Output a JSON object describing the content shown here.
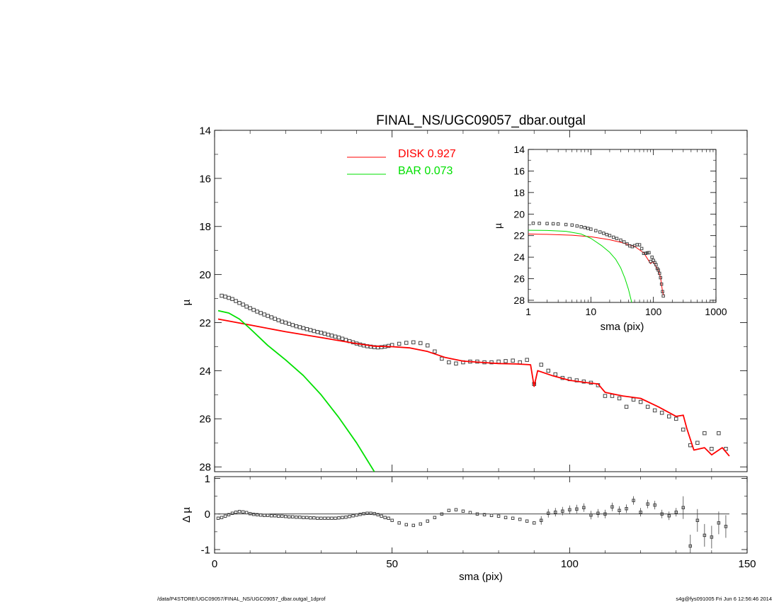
{
  "colors": {
    "disk": "#ff0000",
    "bar": "#00e000",
    "data": "#555555",
    "axis": "#000000"
  },
  "chart_data": [
    {
      "id": "main",
      "type": "line",
      "title": "FINAL_NS/UGC09057_dbar.outgal",
      "ylabel": "µ",
      "xlim": [
        0,
        150
      ],
      "ylim": [
        28.2,
        14
      ],
      "x_ticks": [
        0,
        50,
        100,
        150
      ],
      "y_ticks": [
        14,
        16,
        18,
        20,
        22,
        24,
        26,
        28
      ],
      "legend": {
        "placement": "top-center",
        "entries": [
          {
            "label": "DISK  0.927",
            "color": "#ff0000"
          },
          {
            "label": "BAR  0.073",
            "color": "#00e000"
          }
        ]
      },
      "series": [
        {
          "name": "DISK",
          "color": "#ff0000",
          "x": [
            1,
            10,
            20,
            30,
            40,
            45,
            50,
            55,
            60,
            65,
            70,
            75,
            80,
            85,
            89,
            90,
            91,
            95,
            100,
            105,
            108,
            110,
            115,
            120,
            125,
            130,
            132,
            133,
            135,
            138,
            140,
            143,
            145
          ],
          "y": [
            21.85,
            22.1,
            22.38,
            22.62,
            22.87,
            22.98,
            23.0,
            23.05,
            23.2,
            23.45,
            23.6,
            23.65,
            23.7,
            23.72,
            23.75,
            24.65,
            24.0,
            24.2,
            24.4,
            24.5,
            24.55,
            24.9,
            25.05,
            25.15,
            25.5,
            25.9,
            25.85,
            26.4,
            27.3,
            27.2,
            27.5,
            27.2,
            27.55
          ]
        },
        {
          "name": "BAR",
          "color": "#00e000",
          "x": [
            1,
            4,
            7,
            10,
            15,
            20,
            25,
            30,
            35,
            40,
            45
          ],
          "y": [
            21.5,
            21.6,
            21.85,
            22.25,
            22.95,
            23.55,
            24.2,
            25.0,
            25.95,
            27.0,
            28.2
          ]
        }
      ],
      "points": {
        "x": [
          2,
          3,
          4,
          5,
          6,
          7,
          8,
          9,
          10,
          11,
          12,
          13,
          14,
          15,
          16,
          17,
          18,
          19,
          20,
          21,
          22,
          23,
          24,
          25,
          26,
          27,
          28,
          29,
          30,
          31,
          32,
          33,
          34,
          35,
          36,
          37,
          38,
          39,
          40,
          41,
          42,
          43,
          44,
          45,
          46,
          47,
          48,
          49,
          50,
          52,
          54,
          56,
          58,
          60,
          62,
          64,
          66,
          68,
          70,
          72,
          74,
          76,
          78,
          80,
          82,
          84,
          86,
          88,
          90,
          92,
          94,
          96,
          98,
          100,
          102,
          104,
          106,
          108,
          110,
          112,
          114,
          116,
          118,
          120,
          122,
          124,
          126,
          128,
          130,
          132,
          134,
          136,
          138,
          140,
          142,
          144
        ],
        "y": [
          20.88,
          20.92,
          20.97,
          21.02,
          21.1,
          21.18,
          21.25,
          21.33,
          21.4,
          21.47,
          21.54,
          21.6,
          21.66,
          21.72,
          21.78,
          21.84,
          21.9,
          21.96,
          22.0,
          22.05,
          22.1,
          22.15,
          22.19,
          22.23,
          22.27,
          22.31,
          22.35,
          22.39,
          22.42,
          22.46,
          22.5,
          22.54,
          22.58,
          22.62,
          22.67,
          22.72,
          22.77,
          22.82,
          22.87,
          22.91,
          22.95,
          22.98,
          23.0,
          23.02,
          23.03,
          23.02,
          23.0,
          22.97,
          22.93,
          22.88,
          22.84,
          22.82,
          22.85,
          22.95,
          23.2,
          23.5,
          23.65,
          23.7,
          23.65,
          23.62,
          23.62,
          23.65,
          23.65,
          23.62,
          23.6,
          23.58,
          23.65,
          23.55,
          24.55,
          23.75,
          24.0,
          24.15,
          24.3,
          24.35,
          24.4,
          24.45,
          24.5,
          24.6,
          25.05,
          25.05,
          25.15,
          25.5,
          25.2,
          25.3,
          25.5,
          25.65,
          25.75,
          25.9,
          26.0,
          26.45,
          27.1,
          27.0,
          26.6,
          27.25,
          26.6,
          27.25
        ]
      }
    },
    {
      "id": "inset",
      "type": "line",
      "xlabel": "sma (pix)",
      "ylabel": "µ",
      "xscale": "log",
      "xlim": [
        1,
        1000
      ],
      "ylim": [
        28.2,
        14
      ],
      "x_ticks": [
        1,
        10,
        100,
        1000
      ],
      "x_tick_labels": [
        "1",
        "10",
        "100",
        "1000"
      ],
      "y_ticks": [
        14,
        16,
        18,
        20,
        22,
        24,
        26,
        28
      ],
      "series": [
        {
          "name": "DISK",
          "color": "#ff0000",
          "x": [
            1,
            2,
            5,
            10,
            20,
            30,
            50,
            70,
            90,
            100,
            110,
            120,
            130,
            140,
            145
          ],
          "y": [
            21.85,
            21.88,
            21.96,
            22.1,
            22.38,
            22.62,
            23.0,
            23.6,
            24.6,
            24.4,
            24.9,
            25.2,
            25.9,
            27.2,
            27.55
          ]
        },
        {
          "name": "BAR",
          "color": "#00e000",
          "x": [
            1,
            2,
            4,
            7,
            10,
            15,
            20,
            25,
            30,
            35,
            40,
            45
          ],
          "y": [
            21.5,
            21.52,
            21.6,
            21.85,
            22.25,
            22.95,
            23.55,
            24.2,
            25.0,
            25.95,
            27.0,
            28.2
          ]
        }
      ],
      "points": {
        "x": [
          1.2,
          1.5,
          2,
          2.5,
          3,
          4,
          5,
          6,
          7,
          8,
          9,
          10,
          12,
          14,
          16,
          18,
          20,
          23,
          26,
          30,
          34,
          38,
          42,
          46,
          50,
          55,
          60,
          65,
          70,
          75,
          80,
          85,
          90,
          95,
          100,
          105,
          110,
          115,
          120,
          125,
          130,
          135,
          140,
          144
        ],
        "y": [
          20.85,
          20.86,
          20.88,
          20.9,
          20.92,
          20.97,
          21.02,
          21.1,
          21.18,
          21.25,
          21.33,
          21.4,
          21.54,
          21.66,
          21.78,
          21.9,
          22.0,
          22.15,
          22.27,
          22.42,
          22.58,
          22.77,
          22.95,
          23.02,
          22.93,
          22.84,
          22.85,
          23.2,
          23.65,
          23.65,
          23.6,
          23.58,
          24.4,
          24.0,
          24.3,
          24.5,
          24.7,
          25.05,
          25.2,
          25.5,
          25.9,
          26.5,
          27.2,
          27.6
        ]
      }
    },
    {
      "id": "residual",
      "type": "scatter",
      "xlabel": "sma (pix)",
      "ylabel": "Δ µ",
      "xlim": [
        0,
        150
      ],
      "ylim": [
        -1.1,
        1.05
      ],
      "x_ticks": [
        0,
        50,
        100,
        150
      ],
      "x_tick_labels": [
        "0",
        "50",
        "100",
        "150"
      ],
      "y_ticks": [
        1,
        0,
        -1
      ],
      "y_tick_labels": [
        "1",
        "0",
        "-1"
      ],
      "zero_line": 0,
      "points": {
        "x": [
          1,
          2,
          3,
          4,
          5,
          6,
          7,
          8,
          9,
          10,
          11,
          12,
          13,
          14,
          15,
          16,
          17,
          18,
          19,
          20,
          21,
          22,
          23,
          24,
          25,
          26,
          27,
          28,
          29,
          30,
          31,
          32,
          33,
          34,
          35,
          36,
          37,
          38,
          39,
          40,
          41,
          42,
          43,
          44,
          45,
          46,
          47,
          48,
          49,
          50,
          52,
          54,
          56,
          58,
          60,
          62,
          64,
          66,
          68,
          70,
          72,
          74,
          76,
          78,
          80,
          82,
          84,
          86,
          88,
          90,
          92,
          94,
          96,
          98,
          100,
          102,
          104,
          106,
          108,
          110,
          112,
          114,
          116,
          118,
          120,
          122,
          124,
          126,
          128,
          130,
          132,
          134,
          136,
          138,
          140,
          142,
          144
        ],
        "y": [
          -0.12,
          -0.1,
          -0.06,
          -0.02,
          0.02,
          0.05,
          0.07,
          0.06,
          0.04,
          0.01,
          -0.01,
          -0.02,
          -0.03,
          -0.04,
          -0.04,
          -0.05,
          -0.05,
          -0.06,
          -0.06,
          -0.07,
          -0.08,
          -0.08,
          -0.09,
          -0.09,
          -0.1,
          -0.1,
          -0.11,
          -0.11,
          -0.12,
          -0.12,
          -0.12,
          -0.12,
          -0.12,
          -0.12,
          -0.11,
          -0.1,
          -0.09,
          -0.07,
          -0.05,
          -0.03,
          -0.01,
          0.01,
          0.02,
          0.02,
          0.01,
          -0.02,
          -0.06,
          -0.1,
          -0.12,
          -0.18,
          -0.25,
          -0.3,
          -0.32,
          -0.28,
          -0.2,
          -0.1,
          0.0,
          0.1,
          0.12,
          0.08,
          0.04,
          0.0,
          -0.02,
          -0.04,
          -0.06,
          -0.1,
          -0.12,
          -0.15,
          -0.2,
          -0.25,
          -0.18,
          0.02,
          0.05,
          0.08,
          0.12,
          0.14,
          0.18,
          -0.03,
          0.02,
          0.0,
          0.2,
          0.1,
          0.15,
          0.38,
          0.05,
          0.28,
          0.25,
          0.0,
          -0.05,
          0.05,
          0.18,
          -0.9,
          -0.18,
          -0.6,
          -0.65,
          -0.25,
          -0.35
        ]
      }
    }
  ],
  "footer": {
    "left": "/data/P4STORE/UGC09057/FINAL_NS/UGC09057_dbar.outgal_1dprof",
    "right": "s4g@fys091005  Fri Jun  6 12:56:46 2014"
  }
}
